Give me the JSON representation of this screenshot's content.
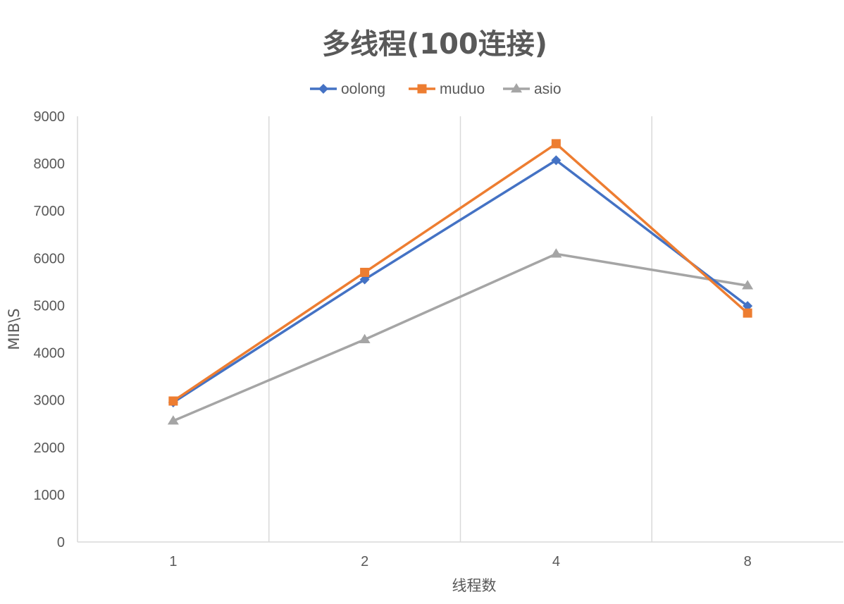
{
  "chart_data": {
    "type": "line",
    "title": "多线程(100连接)",
    "xlabel": "线程数",
    "ylabel": "MIB\\S",
    "categories": [
      "1",
      "2",
      "4",
      "8"
    ],
    "ylim": [
      0,
      9000
    ],
    "yticks": [
      0,
      1000,
      2000,
      3000,
      4000,
      5000,
      6000,
      7000,
      8000,
      9000
    ],
    "grid": "vertical",
    "legend_position": "top-center",
    "series": [
      {
        "name": "oolong",
        "color": "#4472C4",
        "marker": "diamond",
        "values": [
          2950,
          5550,
          8070,
          4990
        ]
      },
      {
        "name": "muduo",
        "color": "#ED7D31",
        "marker": "square",
        "values": [
          2980,
          5700,
          8420,
          4840
        ]
      },
      {
        "name": "asio",
        "color": "#A5A5A5",
        "marker": "triangle",
        "values": [
          2560,
          4280,
          6090,
          5420
        ]
      }
    ]
  }
}
